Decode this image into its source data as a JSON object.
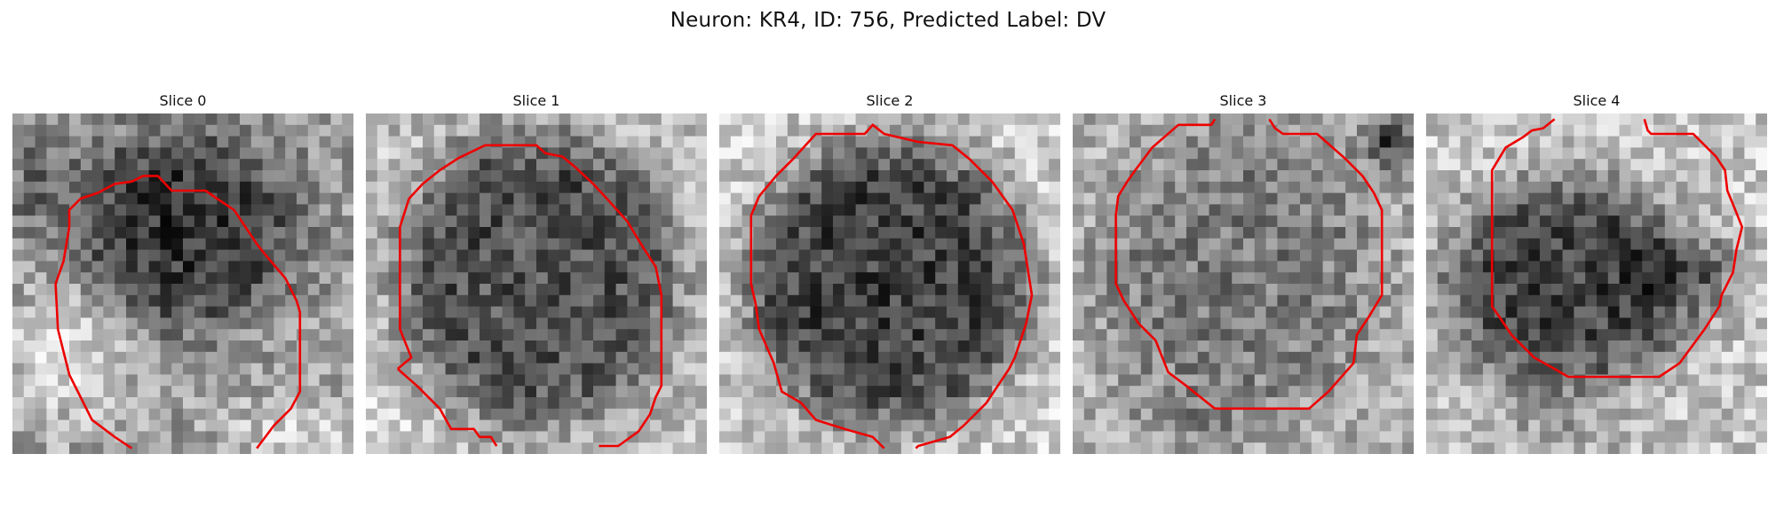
{
  "figure": {
    "title": "Neuron: KR4, ID: 756, Predicted Label: DV"
  },
  "panels": [
    {
      "title": "Slice 0",
      "contour_color": "#ee0000",
      "scene": "grayscale noisy microscopy patch, dark rounded cell body centered right, bright region lower left",
      "tint": [
        0.0,
        -0.05,
        0.55,
        0.5,
        0.3
      ]
    },
    {
      "title": "Slice 1",
      "contour_color": "#ee0000",
      "scene": "grayscale noisy microscopy patch with large round medium-gray cell body",
      "tint": [
        0.0,
        0.1,
        0.5,
        0.55,
        0.4
      ]
    },
    {
      "title": "Slice 2",
      "contour_color": "#ee0000",
      "scene": "grayscale noisy microscopy patch with large round dark cell body",
      "tint": [
        0.0,
        0.05,
        0.5,
        0.5,
        0.35
      ]
    },
    {
      "title": "Slice 3",
      "contour_color": "#ee0000",
      "scene": "grayscale noisy microscopy patch, faint round cell body, dark spot at top right",
      "tint": [
        0.0,
        0.2,
        0.45,
        0.4,
        0.2
      ]
    },
    {
      "title": "Slice 4",
      "contour_color": "#ee0000",
      "scene": "grayscale noisy microscopy patch with dark irregular cell body",
      "tint": [
        0.0,
        0.0,
        0.55,
        0.5,
        0.45
      ]
    }
  ]
}
